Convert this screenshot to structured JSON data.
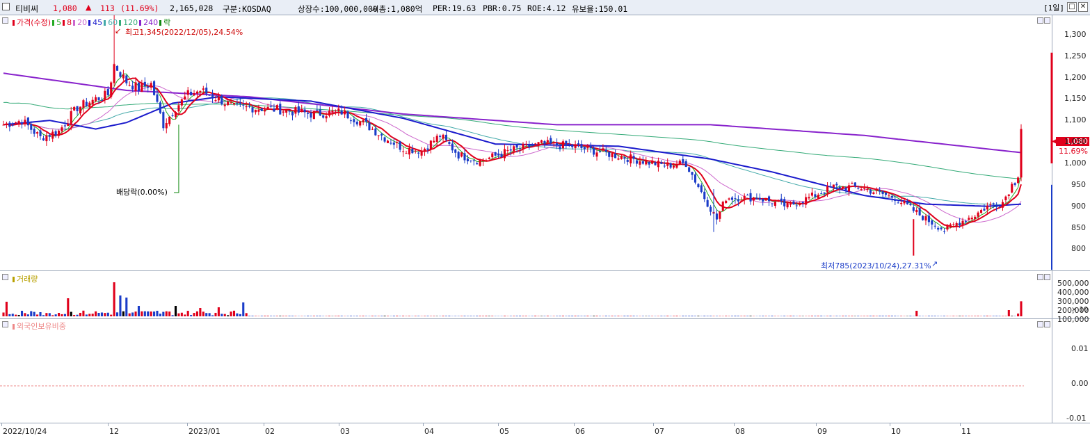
{
  "header": {
    "stock_name": "티비씨",
    "price": "1,080",
    "change_arrow": "▲",
    "change": "113",
    "change_pct": "(11.69%)",
    "volume": "2,165,028",
    "market": "구분:KOSDAQ",
    "shares": "상장수:100,000,000",
    "mktcap": "시총:1,080억",
    "per": "PER:19.63",
    "pbr": "PBR:0.75",
    "roe": "ROE:4.12",
    "reserve": "유보율:150.01",
    "period": "[1일]",
    "btn_restore": "□",
    "btn_close": "✕",
    "up_color": "#e0001b"
  },
  "price_panel": {
    "legend": [
      {
        "label": "가격(수정)",
        "color": "#e0001b"
      },
      {
        "label": "5",
        "color": "#22aa22"
      },
      {
        "label": "8",
        "color": "#e0001b"
      },
      {
        "label": "20",
        "color": "#cc66cc"
      },
      {
        "label": "45",
        "color": "#1a1acc"
      },
      {
        "label": "60",
        "color": "#44aaaa"
      },
      {
        "label": "120",
        "color": "#33aa77"
      },
      {
        "label": "240",
        "color": "#8822cc"
      },
      {
        "label": "락",
        "color": "#118811"
      }
    ],
    "high_note": "최고1,345(2022/12/05),24.54%",
    "low_note": "최저785(2023/10/24),27.31%",
    "dividend_note": "배당락(0.00%)",
    "y_labels": [
      "1,300",
      "1,250",
      "1,200",
      "1,150",
      "1,100",
      "1,050",
      "1,000",
      "950",
      "900",
      "850",
      "800"
    ],
    "current_price_tag": "1,080",
    "current_pct_tag": "11.69%"
  },
  "volume_panel": {
    "title": "거래량",
    "y_labels": [
      "500,000",
      "400,000",
      "300,000",
      "200,000",
      "100,000"
    ],
    "unit": "× 10"
  },
  "foreign_panel": {
    "title": "외국인보유비중",
    "y_labels": [
      "0.01",
      "0.00",
      "-0.01"
    ]
  },
  "x_labels": [
    "2022/10/24",
    "12",
    "2023/01",
    "02",
    "03",
    "04",
    "05",
    "06",
    "07",
    "08",
    "09",
    "10",
    "11"
  ],
  "chart_data": {
    "type": "candlestick",
    "title": "",
    "ylim": [
      765,
      1345
    ],
    "close_anchors": [
      [
        0,
        1090
      ],
      [
        6,
        1100
      ],
      [
        12,
        1060
      ],
      [
        18,
        1075
      ],
      [
        24,
        1130
      ],
      [
        30,
        1150
      ],
      [
        34,
        1160
      ],
      [
        36,
        1230
      ],
      [
        40,
        1190
      ],
      [
        44,
        1175
      ],
      [
        48,
        1185
      ],
      [
        52,
        1090
      ],
      [
        56,
        1130
      ],
      [
        60,
        1160
      ],
      [
        64,
        1170
      ],
      [
        70,
        1150
      ],
      [
        75,
        1130
      ],
      [
        80,
        1130
      ],
      [
        90,
        1125
      ],
      [
        100,
        1115
      ],
      [
        110,
        1120
      ],
      [
        118,
        1090
      ],
      [
        124,
        1060
      ],
      [
        130,
        1035
      ],
      [
        136,
        1030
      ],
      [
        142,
        1065
      ],
      [
        148,
        1020
      ],
      [
        155,
        1005
      ],
      [
        165,
        1030
      ],
      [
        175,
        1045
      ],
      [
        185,
        1040
      ],
      [
        195,
        1025
      ],
      [
        205,
        1010
      ],
      [
        215,
        995
      ],
      [
        222,
        1000
      ],
      [
        228,
        920
      ],
      [
        232,
        870
      ],
      [
        235,
        920
      ],
      [
        245,
        920
      ],
      [
        255,
        900
      ],
      [
        262,
        920
      ],
      [
        270,
        945
      ],
      [
        278,
        945
      ],
      [
        285,
        930
      ],
      [
        290,
        920
      ],
      [
        295,
        895
      ],
      [
        300,
        870
      ],
      [
        306,
        845
      ],
      [
        310,
        860
      ],
      [
        316,
        880
      ],
      [
        320,
        900
      ],
      [
        325,
        910
      ],
      [
        328,
        950
      ],
      [
        330,
        965
      ],
      [
        331,
        1080
      ]
    ],
    "ma240_anchors": [
      [
        0,
        1210
      ],
      [
        40,
        1170
      ],
      [
        80,
        1155
      ],
      [
        130,
        1115
      ],
      [
        180,
        1090
      ],
      [
        230,
        1090
      ],
      [
        280,
        1065
      ],
      [
        331,
        1025
      ]
    ],
    "ma45_anchors": [
      [
        0,
        1090
      ],
      [
        15,
        1100
      ],
      [
        30,
        1080
      ],
      [
        40,
        1095
      ],
      [
        55,
        1140
      ],
      [
        70,
        1155
      ],
      [
        100,
        1145
      ],
      [
        130,
        1105
      ],
      [
        160,
        1045
      ],
      [
        200,
        1040
      ],
      [
        230,
        1010
      ],
      [
        250,
        980
      ],
      [
        280,
        925
      ],
      [
        300,
        905
      ],
      [
        320,
        900
      ],
      [
        331,
        905
      ]
    ],
    "volume_scale_max": 5300000
  }
}
